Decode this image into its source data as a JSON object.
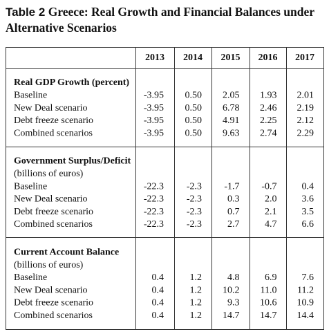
{
  "title": {
    "label": "Table 2",
    "text": "Greece: Real Growth and Financial Balances under Alternative Scenarios"
  },
  "table": {
    "columns": [
      "2013",
      "2014",
      "2015",
      "2016",
      "2017"
    ],
    "sections": [
      {
        "title": "Real GDP Growth (percent)",
        "rows": [
          {
            "label": "Baseline",
            "values": [
              "-3.95",
              "0.50",
              "2.05",
              "1.93",
              "2.01"
            ]
          },
          {
            "label": "New Deal scenario",
            "values": [
              "-3.95",
              "0.50",
              "6.78",
              "2.46",
              "2.19"
            ]
          },
          {
            "label": "Debt freeze scenario",
            "values": [
              "-3.95",
              "0.50",
              "4.91",
              "2.25",
              "2.12"
            ]
          },
          {
            "label": "Combined scenarios",
            "values": [
              "-3.95",
              "0.50",
              "9.63",
              "2.74",
              "2.29"
            ]
          }
        ]
      },
      {
        "title": "Government Surplus/Deficit",
        "subtitle": "(billions of euros)",
        "rows": [
          {
            "label": "Baseline",
            "values": [
              "-22.3",
              "-2.3",
              "-1.7",
              "-0.7",
              "0.4"
            ]
          },
          {
            "label": "New Deal scenario",
            "values": [
              "-22.3",
              "-2.3",
              "0.3",
              "2.0",
              "3.6"
            ]
          },
          {
            "label": "Debt freeze scenario",
            "values": [
              "-22.3",
              "-2.3",
              "0.7",
              "2.1",
              "3.5"
            ]
          },
          {
            "label": "Combined scenarios",
            "values": [
              "-22.3",
              "-2.3",
              "2.7",
              "4.7",
              "6.6"
            ]
          }
        ]
      },
      {
        "title": "Current Account Balance",
        "subtitle": "(billions of euros)",
        "rows": [
          {
            "label": "Baseline",
            "values": [
              "0.4",
              "1.2",
              "4.8",
              "6.9",
              "7.6"
            ]
          },
          {
            "label": "New Deal scenario",
            "values": [
              "0.4",
              "1.2",
              "10.2",
              "11.0",
              "11.2"
            ]
          },
          {
            "label": "Debt freeze scenario",
            "values": [
              "0.4",
              "1.2",
              "9.3",
              "10.6",
              "10.9"
            ]
          },
          {
            "label": "Combined scenarios",
            "values": [
              "0.4",
              "1.2",
              "14.7",
              "14.7",
              "14.4"
            ]
          }
        ]
      }
    ]
  }
}
